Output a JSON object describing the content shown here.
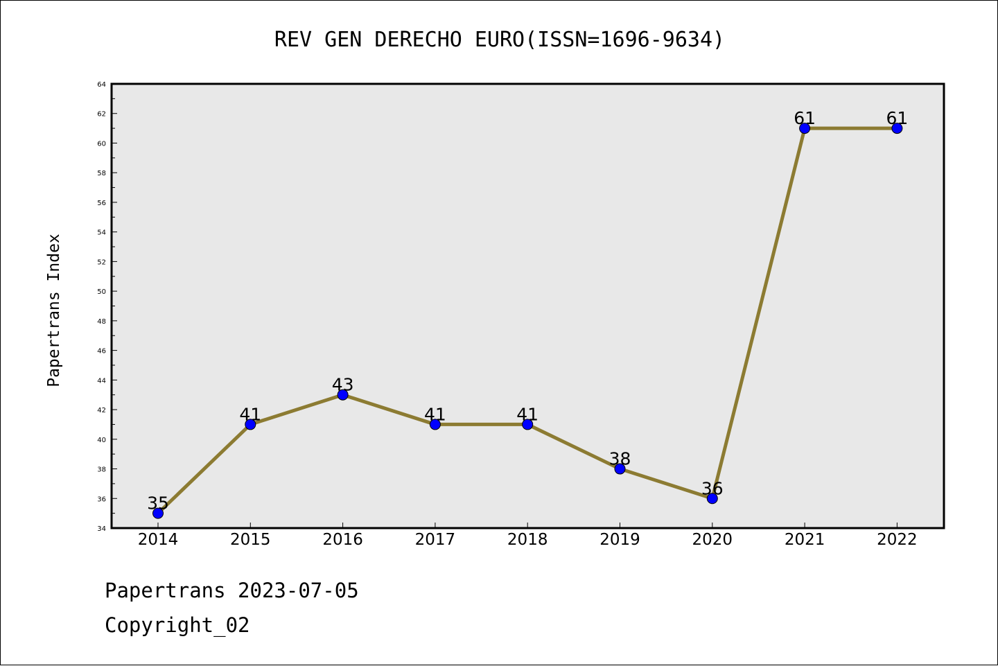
{
  "chart_data": {
    "type": "line",
    "title": "REV GEN DERECHO EURO(ISSN=1696-9634)",
    "ylabel": "Papertrans Index",
    "xlabel": "",
    "categories": [
      "2014",
      "2015",
      "2016",
      "2017",
      "2018",
      "2019",
      "2020",
      "2021",
      "2022"
    ],
    "series": [
      {
        "values": [
          35,
          41,
          43,
          41,
          41,
          38,
          36,
          61,
          61
        ]
      }
    ],
    "ylim": [
      34,
      64
    ],
    "yticks": [
      34,
      36,
      38,
      40,
      42,
      44,
      46,
      48,
      50,
      52,
      54,
      56,
      58,
      60,
      62,
      64
    ],
    "data_labels": true,
    "grid": false,
    "colors": {
      "line": "#8c7b32",
      "marker": "#0000ff",
      "plot_background": "#e8e8e8"
    }
  },
  "footer": {
    "line1": "Papertrans 2023-07-05",
    "line2": "Copyright_02"
  }
}
